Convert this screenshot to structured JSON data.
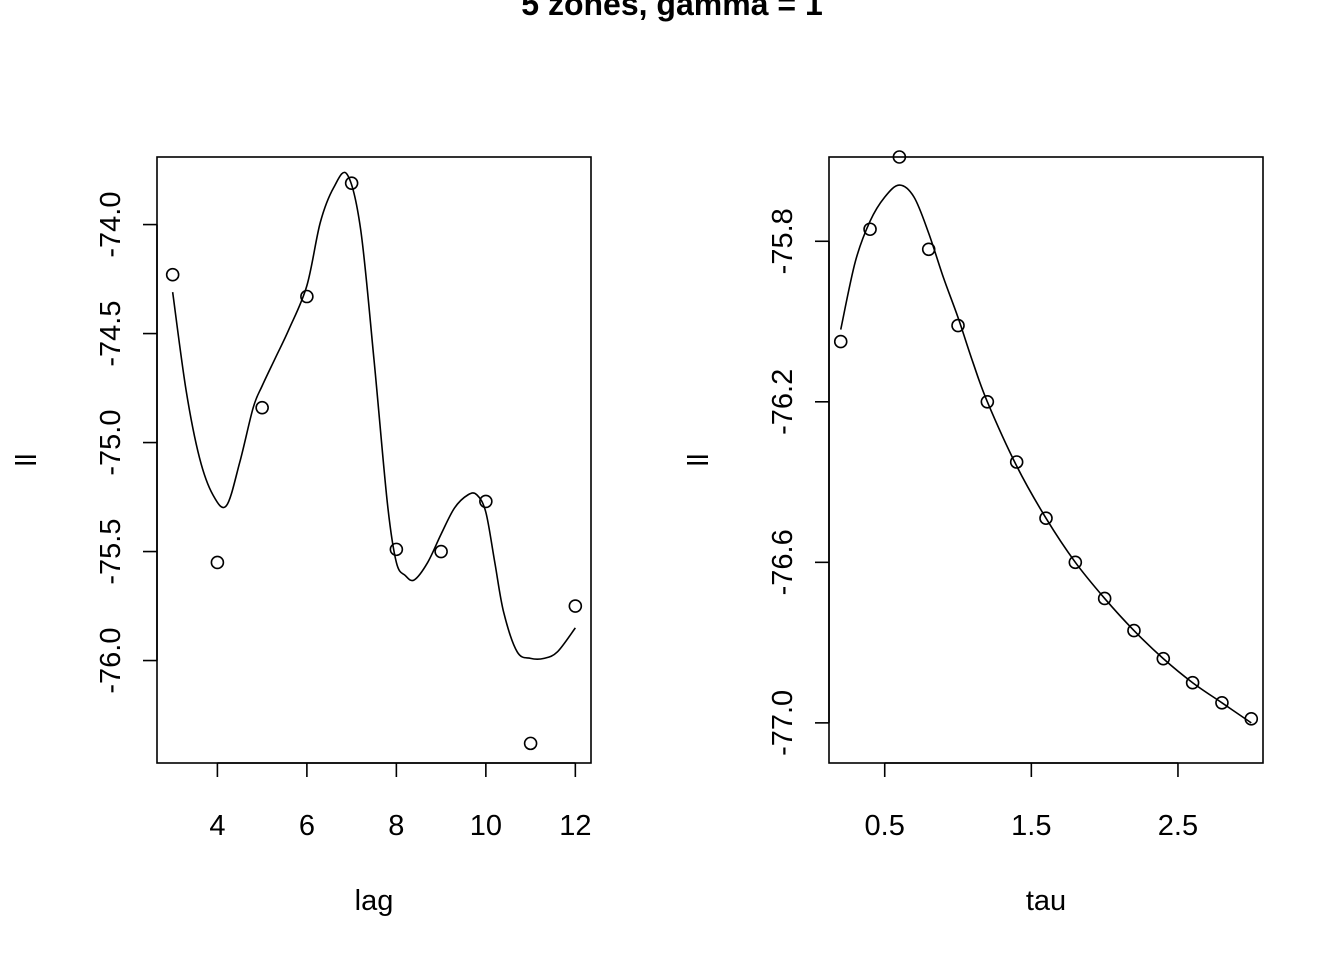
{
  "title": "5 zones, gamma = 1",
  "chart_data": [
    {
      "type": "scatter",
      "xlabel": "lag",
      "ylabel": "ll",
      "xlim": [
        2.65,
        12.35
      ],
      "ylim": [
        -76.47,
        -73.69
      ],
      "xticks": [
        4,
        6,
        8,
        10,
        12
      ],
      "xtick_labels": [
        "4",
        "6",
        "8",
        "10",
        "12"
      ],
      "yticks": [
        -76.0,
        -75.5,
        -75.0,
        -74.5,
        -74.0
      ],
      "ytick_labels": [
        "-76.0",
        "-75.5",
        "-75.0",
        "-74.5",
        "-74.0"
      ],
      "series": [
        {
          "kind": "points",
          "x": [
            3,
            4,
            5,
            6,
            7,
            8,
            9,
            10,
            11,
            12
          ],
          "y": [
            -74.23,
            -75.55,
            -74.84,
            -74.33,
            -73.81,
            -75.49,
            -75.5,
            -75.27,
            -76.38,
            -75.75
          ]
        },
        {
          "kind": "smooth-line",
          "x": [
            3.0,
            3.3,
            3.6,
            3.9,
            4.2,
            4.5,
            4.8,
            5.0,
            5.3,
            5.6,
            6.0,
            6.3,
            6.6,
            6.9,
            7.2,
            7.5,
            7.8,
            8.0,
            8.2,
            8.4,
            8.7,
            9.0,
            9.3,
            9.6,
            9.8,
            10.0,
            10.2,
            10.4,
            10.7,
            11.0,
            11.3,
            11.6,
            12.0
          ],
          "y": [
            -74.31,
            -74.76,
            -75.07,
            -75.24,
            -75.29,
            -75.09,
            -74.84,
            -74.74,
            -74.61,
            -74.48,
            -74.28,
            -73.99,
            -73.83,
            -73.77,
            -74.02,
            -74.62,
            -75.28,
            -75.55,
            -75.61,
            -75.63,
            -75.55,
            -75.42,
            -75.3,
            -75.24,
            -75.24,
            -75.32,
            -75.55,
            -75.78,
            -75.96,
            -75.99,
            -75.99,
            -75.96,
            -75.85
          ]
        }
      ]
    },
    {
      "type": "scatter",
      "xlabel": "tau",
      "ylabel": "ll",
      "xlim": [
        0.12,
        3.08
      ],
      "ylim": [
        -77.1,
        -75.59
      ],
      "xticks": [
        0.5,
        1.5,
        2.5
      ],
      "xtick_labels": [
        "0.5",
        "1.5",
        "2.5"
      ],
      "yticks": [
        -77.0,
        -76.6,
        -76.2,
        -75.8
      ],
      "ytick_labels": [
        "-77.0",
        "-76.6",
        "-76.2",
        "-75.8"
      ],
      "series": [
        {
          "kind": "points",
          "x": [
            0.2,
            0.4,
            0.6,
            0.8,
            1.0,
            1.2,
            1.4,
            1.6,
            1.8,
            2.0,
            2.2,
            2.4,
            2.6,
            2.8,
            3.0
          ],
          "y": [
            -76.05,
            -75.77,
            -75.59,
            -75.82,
            -76.01,
            -76.2,
            -76.35,
            -76.49,
            -76.6,
            -76.69,
            -76.77,
            -76.84,
            -76.9,
            -76.95,
            -76.99
          ]
        },
        {
          "kind": "smooth-line",
          "x": [
            0.2,
            0.3,
            0.4,
            0.5,
            0.6,
            0.7,
            0.8,
            0.9,
            1.0,
            1.1,
            1.2,
            1.4,
            1.6,
            1.8,
            2.0,
            2.2,
            2.4,
            2.6,
            2.8,
            3.0
          ],
          "y": [
            -76.02,
            -75.85,
            -75.75,
            -75.69,
            -75.66,
            -75.69,
            -75.78,
            -75.89,
            -75.99,
            -76.1,
            -76.2,
            -76.36,
            -76.49,
            -76.6,
            -76.69,
            -76.77,
            -76.84,
            -76.9,
            -76.95,
            -77.0
          ]
        }
      ]
    }
  ]
}
